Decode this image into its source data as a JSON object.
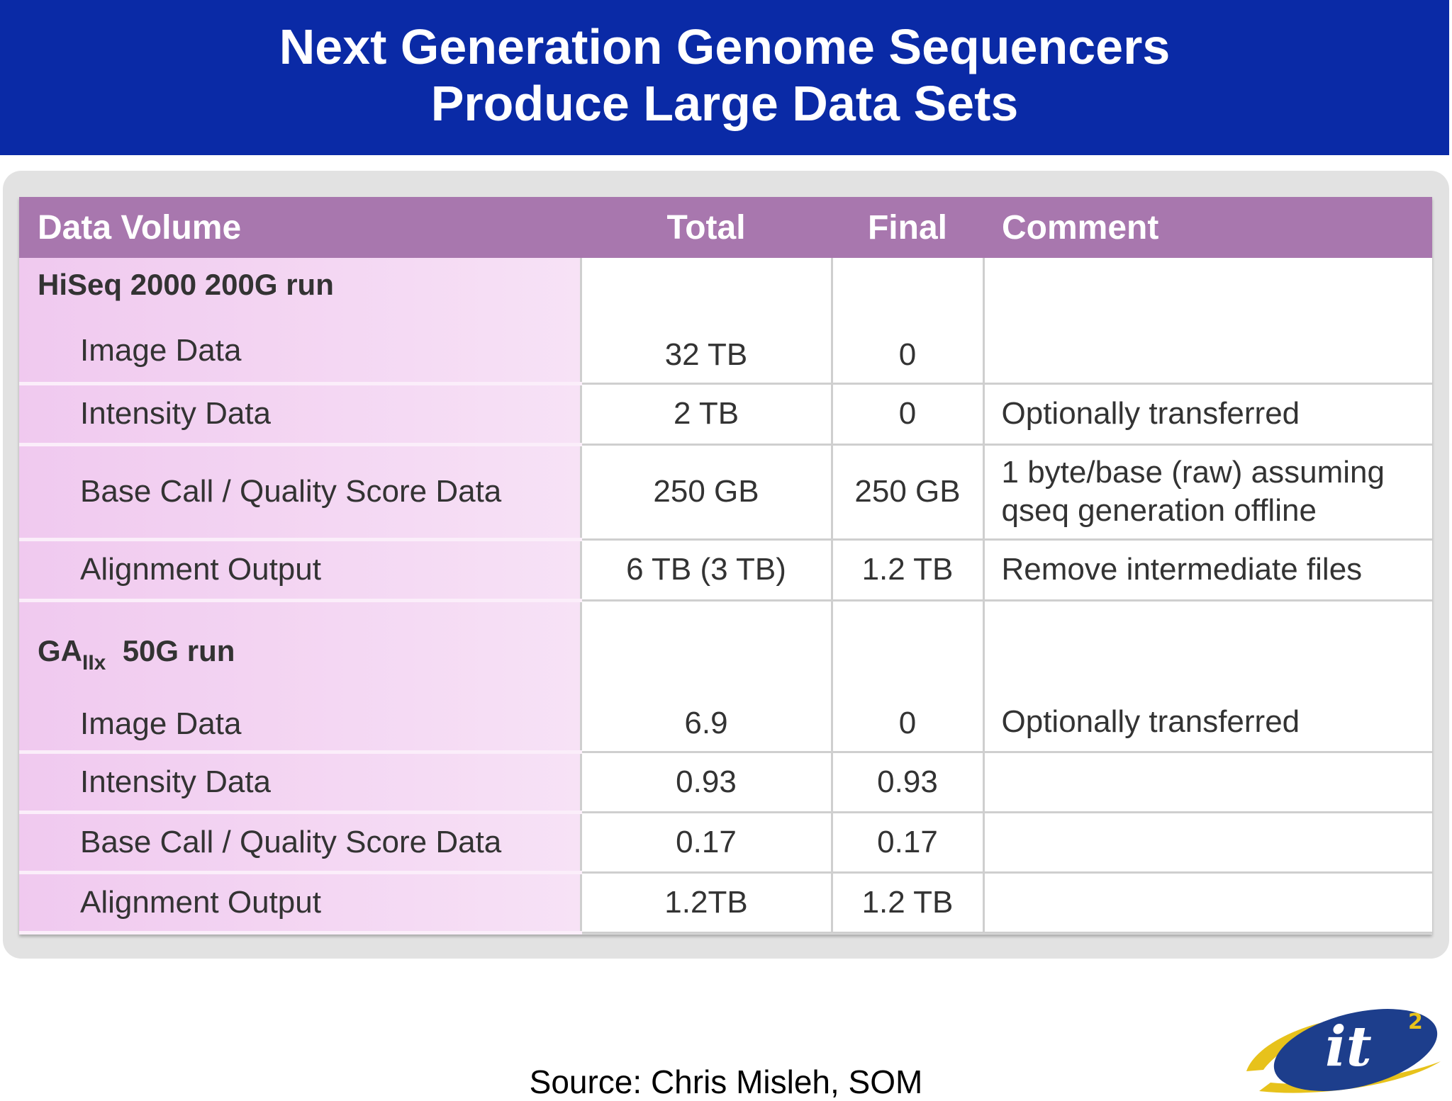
{
  "title": {
    "line1": "Next Generation Genome Sequencers",
    "line2": "Produce Large Data Sets"
  },
  "table": {
    "headers": [
      "Data Volume",
      "Total",
      "Final",
      "Comment"
    ],
    "groups": [
      {
        "name": "HiSeq 2000 200G run",
        "rows": [
          {
            "label": "Image Data",
            "total": "32 TB",
            "final": "0",
            "comment": ""
          },
          {
            "label": "Intensity Data",
            "total": "2 TB",
            "final": "0",
            "comment": "Optionally transferred"
          },
          {
            "label": "Base Call / Quality Score Data",
            "total": "250 GB",
            "final": "250 GB",
            "comment_line1": "1 byte/base (raw) assuming",
            "comment_line2": "qseq generation offline"
          },
          {
            "label": "Alignment Output",
            "total": "6 TB (3 TB)",
            "final": "1.2 TB",
            "comment": "Remove intermediate files"
          }
        ]
      },
      {
        "name_main": "GA",
        "name_sub": "IIx",
        "name_rest": "50G run",
        "rows": [
          {
            "label": "Image Data",
            "total": "6.9",
            "final": "0",
            "comment": "Optionally transferred"
          },
          {
            "label": "Intensity Data",
            "total": "0.93",
            "final": "0.93",
            "comment": ""
          },
          {
            "label": "Base Call / Quality Score Data",
            "total": "0.17",
            "final": "0.17",
            "comment": ""
          },
          {
            "label": "Alignment Output",
            "total": "1.2TB",
            "final": "1.2 TB",
            "comment": ""
          }
        ]
      }
    ]
  },
  "source": "Source: Chris Misleh, SOM",
  "logo": {
    "text": "it",
    "superscript": "2"
  },
  "colors": {
    "title_bg": "#0a2aa6",
    "header_bg": "#a877ae",
    "label_bg": "#f0c9ef",
    "logo_blue": "#1d3e8c",
    "logo_gold": "#e7c21b"
  }
}
